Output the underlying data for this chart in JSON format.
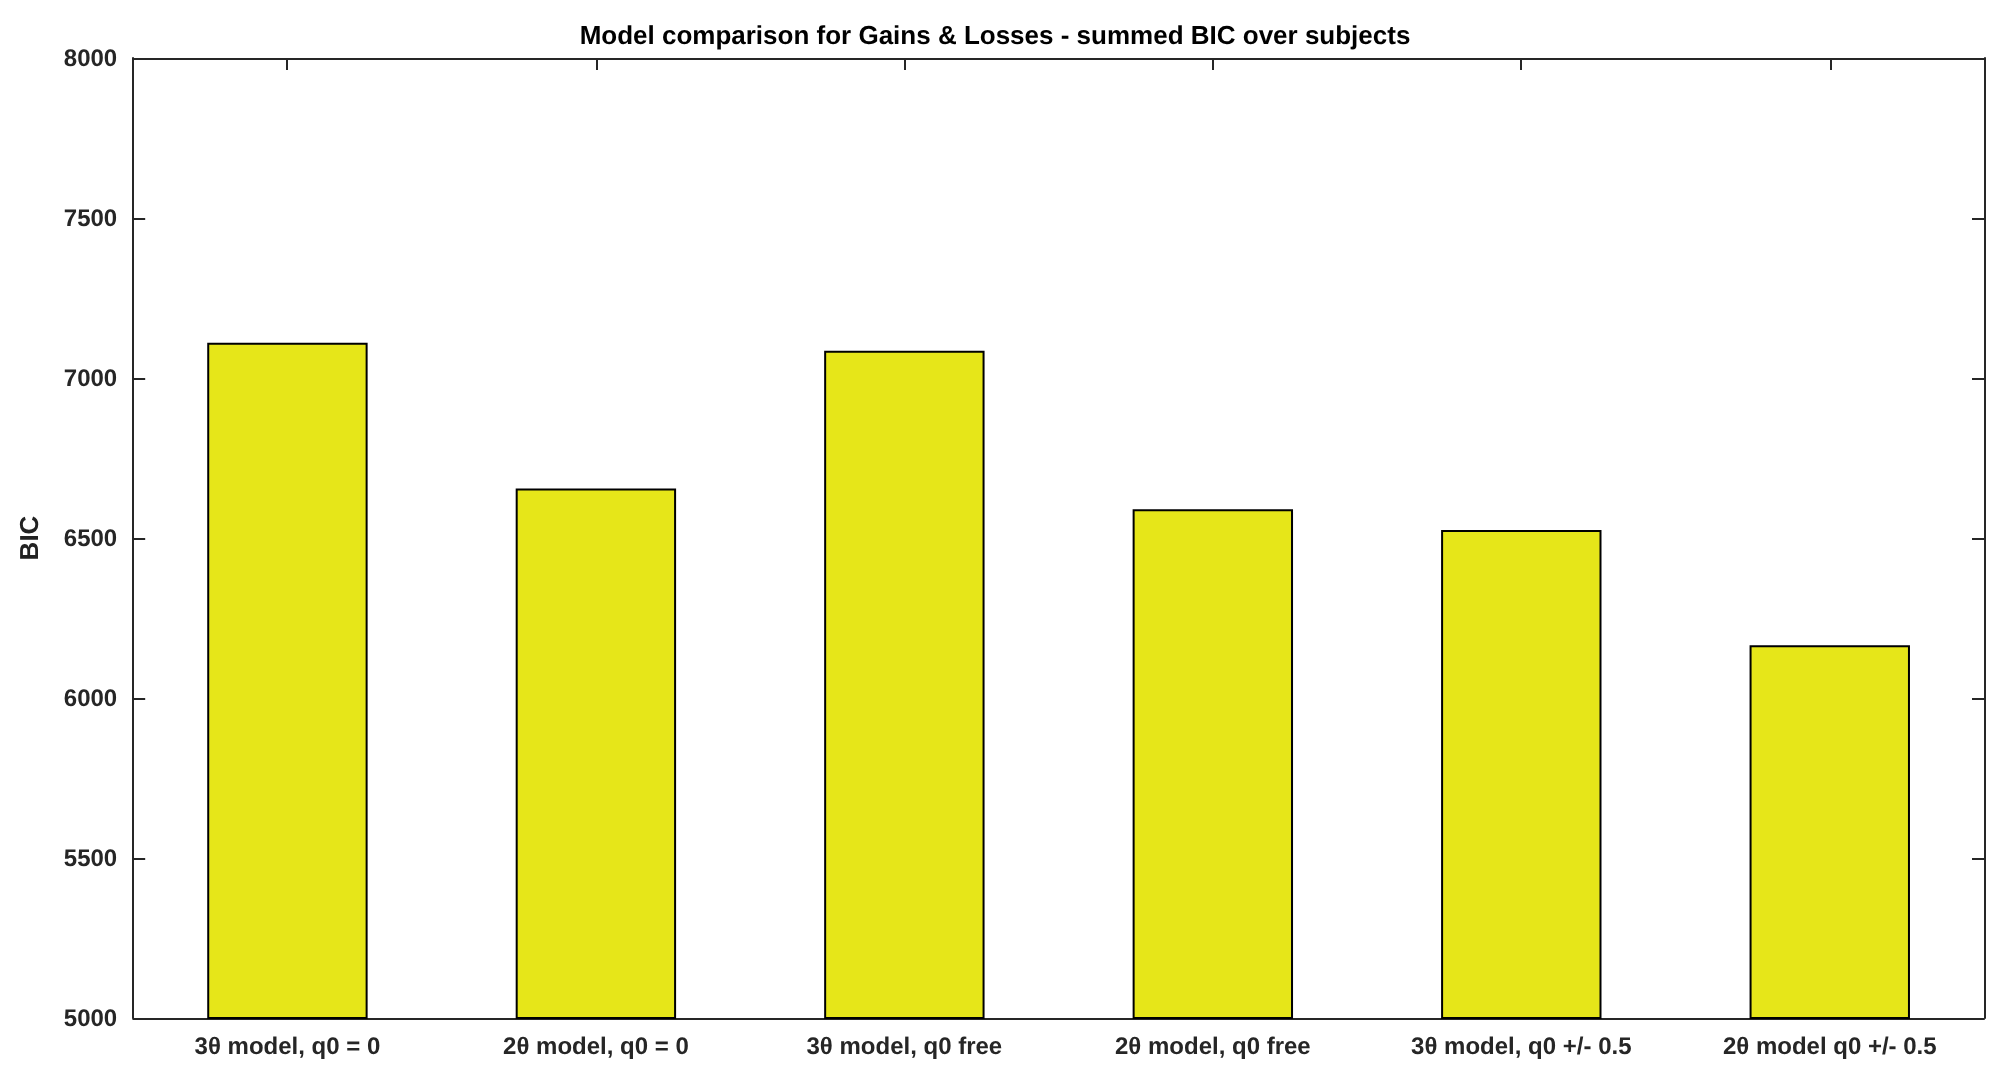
{
  "chart_data": {
    "type": "bar",
    "title": "Model comparison for Gains & Losses - summed BIC over subjects",
    "ylabel": "BIC",
    "categories": [
      "3θ model, q0 = 0",
      "2θ model, q0 = 0",
      "3θ model, q0 free",
      "2θ model, q0 free",
      "3θ model, q0 +/- 0.5",
      "2θ model q0 +/- 0.5"
    ],
    "values": [
      7110,
      6655,
      7085,
      6590,
      6525,
      6165
    ],
    "color": "#e6e619",
    "ylim": [
      5000,
      8000
    ],
    "yticks": [
      5000,
      5500,
      6000,
      6500,
      7000,
      7500,
      8000
    ],
    "grid": false
  }
}
